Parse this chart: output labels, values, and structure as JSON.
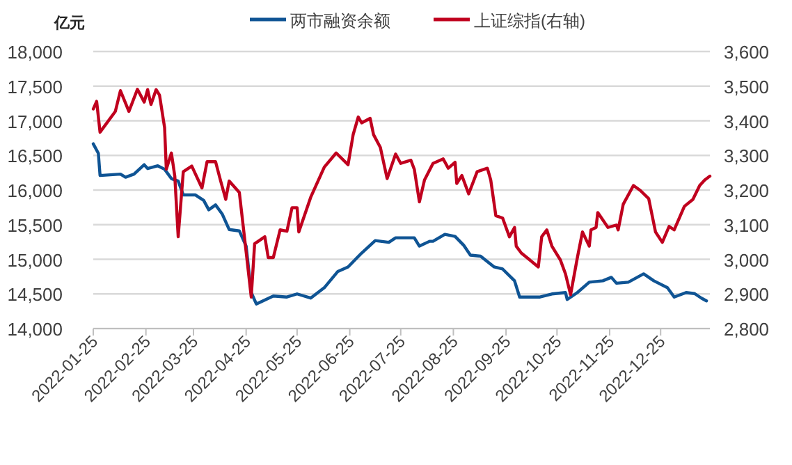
{
  "chart_data": {
    "type": "line",
    "ylabel": "亿元",
    "legend": "top",
    "grid": "y",
    "marker": "none",
    "line_style": "solid",
    "xlim": [
      "2022-01-25",
      "2023-01-23"
    ],
    "xticks": [
      {
        "value": "2022-01-25",
        "label": "2022-01-25"
      },
      {
        "value": "2022-02-25",
        "label": "2022-02-25"
      },
      {
        "value": "2022-03-25",
        "label": "2022-03-25"
      },
      {
        "value": "2022-04-25",
        "label": "2022-04-25"
      },
      {
        "value": "2022-05-25",
        "label": "2022-05-25"
      },
      {
        "value": "2022-06-25",
        "label": "2022-06-25"
      },
      {
        "value": "2022-07-25",
        "label": "2022-07-25"
      },
      {
        "value": "2022-08-25",
        "label": "2022-08-25"
      },
      {
        "value": "2022-09-25",
        "label": "2022-09-25"
      },
      {
        "value": "2022-10-25",
        "label": "2022-10-25"
      },
      {
        "value": "2022-11-25",
        "label": "2022-11-25"
      },
      {
        "value": "2022-12-25",
        "label": "2022-12-25"
      }
    ],
    "ylim": [
      14000,
      18000
    ],
    "yticks": [
      {
        "value": 14000,
        "label": "14,000"
      },
      {
        "value": 14500,
        "label": "14,500"
      },
      {
        "value": 15000,
        "label": "15,000"
      },
      {
        "value": 15500,
        "label": "15,500"
      },
      {
        "value": 16000,
        "label": "16,000"
      },
      {
        "value": 16500,
        "label": "16,500"
      },
      {
        "value": 17000,
        "label": "17,000"
      },
      {
        "value": 17500,
        "label": "17,500"
      },
      {
        "value": 18000,
        "label": "18,000"
      }
    ],
    "y2lim": [
      2800,
      3600
    ],
    "y2ticks": [
      {
        "value": 2800,
        "label": "2,800"
      },
      {
        "value": 2900,
        "label": "2,900"
      },
      {
        "value": 3000,
        "label": "3,000"
      },
      {
        "value": 3100,
        "label": "3,100"
      },
      {
        "value": 3200,
        "label": "3,200"
      },
      {
        "value": 3300,
        "label": "3,300"
      },
      {
        "value": 3400,
        "label": "3,400"
      },
      {
        "value": 3500,
        "label": "3,500"
      },
      {
        "value": 3600,
        "label": "3,600"
      }
    ],
    "series": [
      {
        "name": "两市融资余额",
        "color": "#0f5494",
        "x": [
          "2022-01-25",
          "2022-01-28",
          "2022-01-29",
          "2022-02-10",
          "2022-02-13",
          "2022-02-18",
          "2022-02-24",
          "2022-02-26",
          "2022-03-04",
          "2022-03-08",
          "2022-03-12",
          "2022-03-16",
          "2022-03-19",
          "2022-03-26",
          "2022-03-31",
          "2022-04-03",
          "2022-04-07",
          "2022-04-11",
          "2022-04-15",
          "2022-04-21",
          "2022-04-25",
          "2022-04-28",
          "2022-05-01",
          "2022-05-11",
          "2022-05-19",
          "2022-05-25",
          "2022-06-02",
          "2022-06-10",
          "2022-06-18",
          "2022-06-24",
          "2022-07-02",
          "2022-07-10",
          "2022-07-18",
          "2022-07-22",
          "2022-08-02",
          "2022-08-05",
          "2022-08-11",
          "2022-08-13",
          "2022-08-20",
          "2022-08-26",
          "2022-08-31",
          "2022-09-04",
          "2022-09-10",
          "2022-09-18",
          "2022-09-23",
          "2022-09-30",
          "2022-10-03",
          "2022-10-15",
          "2022-10-22",
          "2022-10-30",
          "2022-10-31",
          "2022-11-06",
          "2022-11-13",
          "2022-11-21",
          "2022-11-26",
          "2022-11-29",
          "2022-12-06",
          "2022-12-15",
          "2022-12-21",
          "2022-12-29",
          "2023-01-02",
          "2023-01-09",
          "2023-01-14",
          "2023-01-18",
          "2023-01-21"
        ],
        "values": [
          16667,
          16530,
          16210,
          16230,
          16185,
          16230,
          16365,
          16310,
          16350,
          16300,
          16165,
          16130,
          15930,
          15930,
          15850,
          15715,
          15785,
          15650,
          15430,
          15410,
          15190,
          14520,
          14355,
          14470,
          14455,
          14500,
          14440,
          14590,
          14825,
          14890,
          15090,
          15270,
          15245,
          15310,
          15310,
          15190,
          15260,
          15260,
          15360,
          15330,
          15205,
          15060,
          15045,
          14890,
          14860,
          14690,
          14455,
          14455,
          14500,
          14520,
          14420,
          14520,
          14670,
          14690,
          14740,
          14655,
          14670,
          14790,
          14690,
          14590,
          14455,
          14520,
          14505,
          14440,
          14400
        ]
      },
      {
        "name": "上证综指(右轴)",
        "color": "#c0001e",
        "axis": "y2",
        "x": [
          "2022-01-25",
          "2022-01-27",
          "2022-01-29",
          "2022-02-07",
          "2022-02-10",
          "2022-02-15",
          "2022-02-20",
          "2022-02-24",
          "2022-02-26",
          "2022-02-28",
          "2022-03-03",
          "2022-03-05",
          "2022-03-08",
          "2022-03-09",
          "2022-03-12",
          "2022-03-14",
          "2022-03-16",
          "2022-03-19",
          "2022-03-24",
          "2022-03-30",
          "2022-04-02",
          "2022-04-07",
          "2022-04-10",
          "2022-04-13",
          "2022-04-15",
          "2022-04-21",
          "2022-04-24",
          "2022-04-28",
          "2022-04-30",
          "2022-05-06",
          "2022-05-08",
          "2022-05-11",
          "2022-05-15",
          "2022-05-19",
          "2022-05-22",
          "2022-05-25",
          "2022-05-26",
          "2022-06-02",
          "2022-06-10",
          "2022-06-17",
          "2022-06-24",
          "2022-06-27",
          "2022-06-30",
          "2022-07-02",
          "2022-07-07",
          "2022-07-09",
          "2022-07-13",
          "2022-07-17",
          "2022-07-22",
          "2022-07-25",
          "2022-07-31",
          "2022-08-02",
          "2022-08-05",
          "2022-08-08",
          "2022-08-13",
          "2022-08-19",
          "2022-08-22",
          "2022-08-26",
          "2022-08-27",
          "2022-08-30",
          "2022-09-03",
          "2022-09-08",
          "2022-09-14",
          "2022-09-16",
          "2022-09-19",
          "2022-09-23",
          "2022-09-27",
          "2022-09-30",
          "2022-10-01",
          "2022-10-04",
          "2022-10-14",
          "2022-10-16",
          "2022-10-19",
          "2022-10-22",
          "2022-10-27",
          "2022-10-30",
          "2022-11-02",
          "2022-11-06",
          "2022-11-09",
          "2022-11-13",
          "2022-11-14",
          "2022-11-17",
          "2022-11-18",
          "2022-11-24",
          "2022-11-29",
          "2022-11-30",
          "2022-12-03",
          "2022-12-09",
          "2022-12-13",
          "2022-12-18",
          "2022-12-22",
          "2022-12-26",
          "2022-12-30",
          "2023-01-02",
          "2023-01-08",
          "2023-01-13",
          "2023-01-17",
          "2023-01-20",
          "2023-01-23"
        ],
        "values": [
          3434,
          3456,
          3367,
          3427,
          3487,
          3427,
          3491,
          3454,
          3490,
          3447,
          3490,
          3474,
          3380,
          3260,
          3307,
          3240,
          3065,
          3253,
          3269,
          3206,
          3282,
          3282,
          3226,
          3173,
          3226,
          3193,
          3065,
          2891,
          3045,
          3065,
          3005,
          3005,
          3085,
          3081,
          3149,
          3149,
          3079,
          3179,
          3266,
          3307,
          3273,
          3360,
          3411,
          3394,
          3407,
          3360,
          3323,
          3233,
          3304,
          3277,
          3286,
          3260,
          3166,
          3229,
          3277,
          3290,
          3263,
          3280,
          3219,
          3242,
          3189,
          3253,
          3263,
          3229,
          3126,
          3119,
          3065,
          3092,
          3038,
          3018,
          2978,
          3065,
          3085,
          3038,
          2998,
          2958,
          2898,
          3005,
          3079,
          3038,
          3085,
          3092,
          3135,
          3092,
          3099,
          3085,
          3159,
          3213,
          3199,
          3175,
          3079,
          3049,
          3095,
          3085,
          3153,
          3173,
          3213,
          3229,
          3240
        ]
      }
    ]
  }
}
